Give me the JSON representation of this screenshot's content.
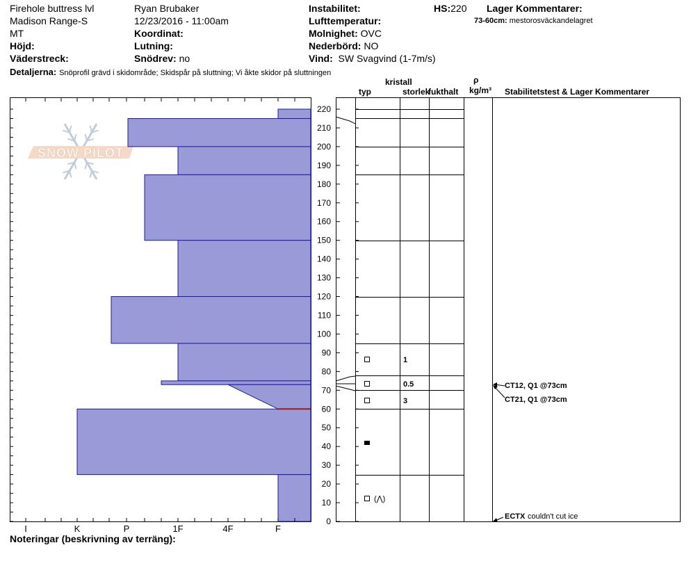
{
  "header": {
    "location": "Firehole buttress lvl",
    "range": "Madison Range-S",
    "state": "MT",
    "hojd_label": "Höjd:",
    "vaderstreck_label": "Väderstreck:",
    "observer": "Ryan Brubaker",
    "datetime": "12/23/2016 - 11:00am",
    "koordinat_label": "Koordinat:",
    "lutning_label": "Lutning:",
    "snodrev_label": "Snödrev:",
    "snodrev_value": "no",
    "instabilitet_label": "Instabilitet:",
    "lufttemp_label": "Lufttemperatur:",
    "molnighet_label": "Molnighet:",
    "molnighet_value": "OVC",
    "nederbord_label": "Nederbörd:",
    "nederbord_value": "NO",
    "vind_label": "Vind:",
    "vind_value": "SW  Svagvind (1-7m/s)",
    "hs_label": "HS:",
    "hs_value": "220",
    "lager_kommentarer_label": "Lager Kommentarer:",
    "lager_note_label": "73-60cm:",
    "lager_note_value": "mestorosväckandelagret",
    "detaljerna_label": "Detaljerna:",
    "detaljerna_value": "Snöprofil grävd i skidområde;  Skidspår på sluttning;  Vi åkte skidor på sluttningen",
    "noteringar_label": "Noteringar (beskrivning av terräng):"
  },
  "columns": {
    "kristall": "kristall",
    "typ": "typ",
    "storlek": "storlek",
    "fukthalt": "fukthalt",
    "rho": "ρ",
    "density_unit": "kg/m³",
    "stability": "Stabilitetstest & Lager Kommentarer"
  },
  "logo_text": "SNOW PILOT",
  "colors": {
    "bar_fill": "#9a9ad8",
    "bar_stroke": "#1a1aa0",
    "red_line": "#a01818"
  },
  "chart_data": {
    "type": "bar",
    "orientation": "horizontal",
    "y_axis": {
      "min": 0,
      "max": 220,
      "ticks": [
        0,
        10,
        20,
        30,
        40,
        50,
        60,
        70,
        80,
        90,
        100,
        110,
        120,
        130,
        140,
        150,
        160,
        170,
        180,
        190,
        200,
        210,
        220
      ]
    },
    "hardness_scale": [
      "I",
      "K",
      "P",
      "1F",
      "4F",
      "F"
    ],
    "hardness_layers": [
      {
        "top": 220,
        "bottom": 215,
        "hardness": "F"
      },
      {
        "top": 215,
        "bottom": 200,
        "hardness": "P-"
      },
      {
        "top": 200,
        "bottom": 185,
        "hardness": "1F"
      },
      {
        "top": 185,
        "bottom": 150,
        "hardness": "P"
      },
      {
        "top": 150,
        "bottom": 120,
        "hardness": "1F"
      },
      {
        "top": 120,
        "bottom": 95,
        "hardness": "P+"
      },
      {
        "top": 95,
        "bottom": 75,
        "hardness": "1F"
      },
      {
        "top": 75,
        "bottom": 73,
        "hardness": "1F+"
      },
      {
        "top": 73,
        "bottom": 60,
        "hardness": "4F-F"
      },
      {
        "top": 60,
        "bottom": 25,
        "hardness": "K"
      },
      {
        "top": 25,
        "bottom": 0,
        "hardness": "F"
      }
    ],
    "weak_layer_height": 60,
    "crystals": [
      {
        "height": 87,
        "symbol": "□",
        "size": "1"
      },
      {
        "height": 73,
        "symbol": "□",
        "size": "0.5"
      },
      {
        "height": 65,
        "symbol": "□",
        "size": "3"
      },
      {
        "height": 42,
        "symbol": "■",
        "size": ""
      },
      {
        "height": 12,
        "symbol": "□ (⋀)",
        "size": ""
      }
    ],
    "layer_boundaries": [
      220,
      215,
      200,
      185,
      150,
      120,
      95,
      78,
      70,
      60,
      25
    ],
    "stability_tests": [
      {
        "height": 73,
        "label": "CT12, Q1 @73cm"
      },
      {
        "height": 73,
        "label": "CT21, Q1 @73cm"
      },
      {
        "height": 0,
        "label": "ECTX",
        "comment": "couldn't cut ice"
      }
    ]
  }
}
